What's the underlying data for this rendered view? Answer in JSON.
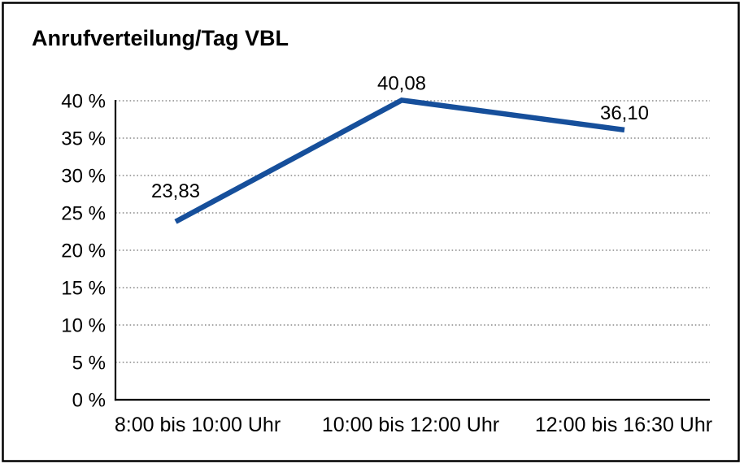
{
  "chart_data": {
    "type": "line",
    "title": "Anrufverteilung/Tag VBL",
    "categories": [
      "8:00 bis 10:00 Uhr",
      "10:00 bis 12:00 Uhr",
      "12:00 bis 16:30 Uhr"
    ],
    "values": [
      23.83,
      40.08,
      36.1
    ],
    "data_labels": [
      "23,83",
      "40,08",
      "36,10"
    ],
    "xlabel": "",
    "ylabel": "",
    "ylim": [
      0,
      40
    ],
    "ytick_step": 5,
    "ytick_labels": [
      "0 %",
      "5 %",
      "10 %",
      "15 %",
      "20 %",
      "25 %",
      "30 %",
      "35 %",
      "40 %"
    ],
    "grid": "horizontal-dotted",
    "legend": "none",
    "colors": {
      "line": "#164f9b",
      "grid": "#8a8a8a",
      "axis": "#000000",
      "text": "#000000",
      "background": "#ffffff",
      "border": "#000000"
    }
  }
}
